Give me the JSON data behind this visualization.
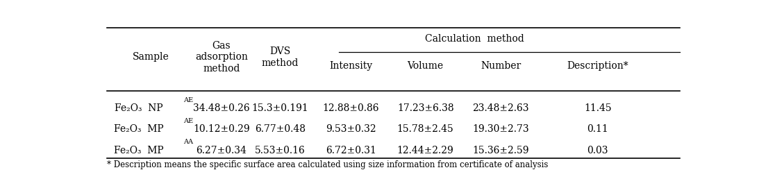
{
  "sample_col": [
    "Fe₂O₃  NP",
    "Fe₂O₃  MP",
    "Fe₂O₃  MP"
  ],
  "sample_sup": [
    "AE",
    "AE",
    "AA"
  ],
  "gas_ads": [
    "34.48±0.26",
    "10.12±0.29",
    "6.27±0.34"
  ],
  "dvs": [
    "15.3±0.191",
    "6.77±0.48",
    "5.53±0.16"
  ],
  "intensity": [
    "12.88±0.86",
    "9.53±0.32",
    "6.72±0.31"
  ],
  "volume": [
    "17.23±6.38",
    "15.78±2.45",
    "12.44±2.29"
  ],
  "number": [
    "23.48±2.63",
    "19.30±2.73",
    "15.36±2.59"
  ],
  "description": [
    "11.45",
    "0.11",
    "0.03"
  ],
  "footnote": "* Description means the specific surface area calculated using size information from certificate of analysis",
  "bg_color": "#ffffff",
  "text_color": "#000000",
  "line_color": "#000000",
  "fontsize": 10,
  "footnote_fontsize": 8.5
}
